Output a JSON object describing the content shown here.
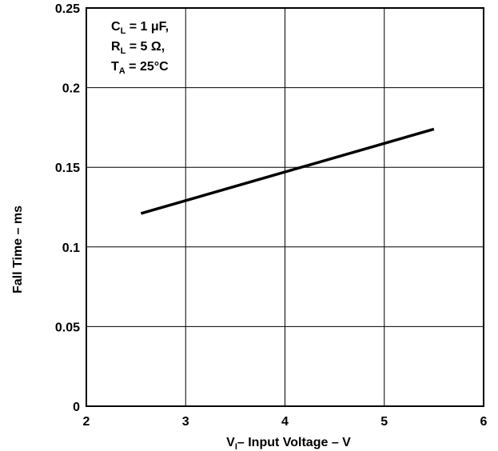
{
  "chart_data": {
    "type": "line",
    "title": "",
    "xlabel": "– Input Voltage – V",
    "xlabel_var": "V",
    "xlabel_sub": "I",
    "ylabel": "Fall Time – ms",
    "xlim": [
      2,
      6
    ],
    "ylim": [
      0,
      0.25
    ],
    "x_ticks": [
      2,
      3,
      4,
      5,
      6
    ],
    "x_tick_labels": [
      "2",
      "3",
      "4",
      "5",
      "6"
    ],
    "y_ticks": [
      0,
      0.05,
      0.1,
      0.15,
      0.2,
      0.25
    ],
    "y_tick_labels": [
      "0",
      "0.05",
      "0.1",
      "0.15",
      "0.2",
      "0.25"
    ],
    "grid": true,
    "series": [
      {
        "x": [
          2.55,
          5.5
        ],
        "y": [
          0.121,
          0.174
        ]
      }
    ],
    "annotations": [
      {
        "main": "C",
        "sub": "L",
        "rest": " = 1 μF,"
      },
      {
        "main": "R",
        "sub": "L",
        "rest": " = 5 Ω,"
      },
      {
        "main": "T",
        "sub": "A",
        "rest": " = 25°C"
      }
    ]
  }
}
